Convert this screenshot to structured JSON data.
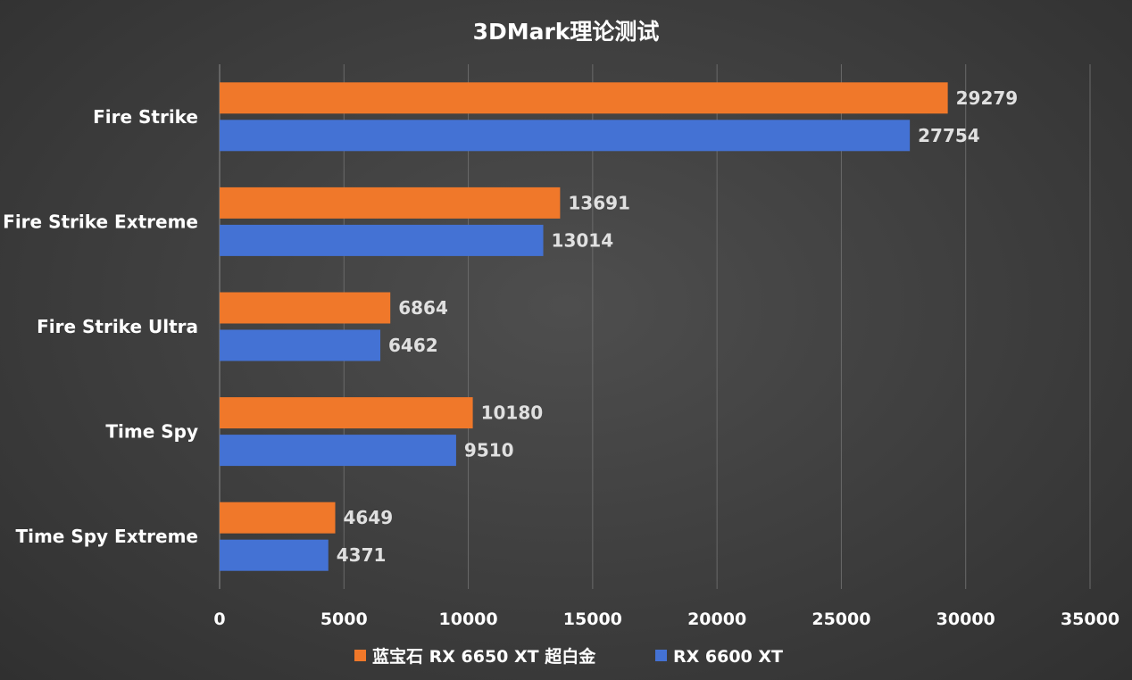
{
  "chart_data": {
    "type": "bar",
    "orientation": "horizontal",
    "title": "3DMark理论测试",
    "categories": [
      "Fire Strike",
      "Fire Strike Extreme",
      "Fire Strike Ultra",
      "Time Spy",
      "Time Spy Extreme"
    ],
    "series": [
      {
        "name": "蓝宝石 RX 6650 XT 超白金",
        "color": "#f0782a",
        "values": [
          29279,
          13691,
          6864,
          10180,
          4649
        ]
      },
      {
        "name": "RX 6600 XT",
        "color": "#4472d4",
        "values": [
          27754,
          13014,
          6462,
          9510,
          4371
        ]
      }
    ],
    "xlim": [
      0,
      35000
    ],
    "xticks": [
      0,
      5000,
      10000,
      15000,
      20000,
      25000,
      30000,
      35000
    ],
    "xlabel": "",
    "ylabel": "",
    "grid": true,
    "legend_position": "bottom"
  }
}
